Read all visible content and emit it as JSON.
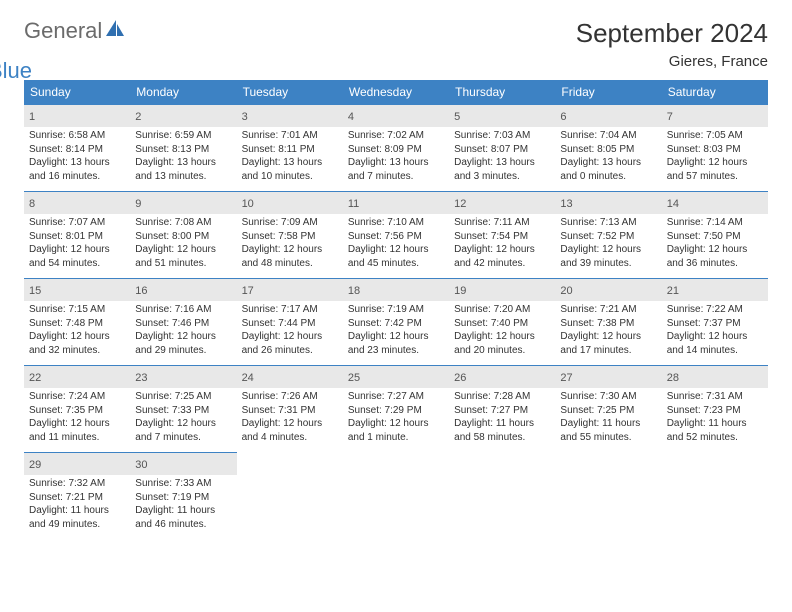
{
  "logo": {
    "text1": "General",
    "text2": "Blue",
    "icon_fill": "#2f6fb0"
  },
  "title": "September 2024",
  "location": "Gieres, France",
  "header_bg": "#3d82c4",
  "header_fg": "#ffffff",
  "daynum_bg": "#e8e8e8",
  "border_color": "#3d82c4",
  "weekdays": [
    "Sunday",
    "Monday",
    "Tuesday",
    "Wednesday",
    "Thursday",
    "Friday",
    "Saturday"
  ],
  "days": [
    {
      "n": "1",
      "sunrise": "6:58 AM",
      "sunset": "8:14 PM",
      "daylight": "13 hours and 16 minutes."
    },
    {
      "n": "2",
      "sunrise": "6:59 AM",
      "sunset": "8:13 PM",
      "daylight": "13 hours and 13 minutes."
    },
    {
      "n": "3",
      "sunrise": "7:01 AM",
      "sunset": "8:11 PM",
      "daylight": "13 hours and 10 minutes."
    },
    {
      "n": "4",
      "sunrise": "7:02 AM",
      "sunset": "8:09 PM",
      "daylight": "13 hours and 7 minutes."
    },
    {
      "n": "5",
      "sunrise": "7:03 AM",
      "sunset": "8:07 PM",
      "daylight": "13 hours and 3 minutes."
    },
    {
      "n": "6",
      "sunrise": "7:04 AM",
      "sunset": "8:05 PM",
      "daylight": "13 hours and 0 minutes."
    },
    {
      "n": "7",
      "sunrise": "7:05 AM",
      "sunset": "8:03 PM",
      "daylight": "12 hours and 57 minutes."
    },
    {
      "n": "8",
      "sunrise": "7:07 AM",
      "sunset": "8:01 PM",
      "daylight": "12 hours and 54 minutes."
    },
    {
      "n": "9",
      "sunrise": "7:08 AM",
      "sunset": "8:00 PM",
      "daylight": "12 hours and 51 minutes."
    },
    {
      "n": "10",
      "sunrise": "7:09 AM",
      "sunset": "7:58 PM",
      "daylight": "12 hours and 48 minutes."
    },
    {
      "n": "11",
      "sunrise": "7:10 AM",
      "sunset": "7:56 PM",
      "daylight": "12 hours and 45 minutes."
    },
    {
      "n": "12",
      "sunrise": "7:11 AM",
      "sunset": "7:54 PM",
      "daylight": "12 hours and 42 minutes."
    },
    {
      "n": "13",
      "sunrise": "7:13 AM",
      "sunset": "7:52 PM",
      "daylight": "12 hours and 39 minutes."
    },
    {
      "n": "14",
      "sunrise": "7:14 AM",
      "sunset": "7:50 PM",
      "daylight": "12 hours and 36 minutes."
    },
    {
      "n": "15",
      "sunrise": "7:15 AM",
      "sunset": "7:48 PM",
      "daylight": "12 hours and 32 minutes."
    },
    {
      "n": "16",
      "sunrise": "7:16 AM",
      "sunset": "7:46 PM",
      "daylight": "12 hours and 29 minutes."
    },
    {
      "n": "17",
      "sunrise": "7:17 AM",
      "sunset": "7:44 PM",
      "daylight": "12 hours and 26 minutes."
    },
    {
      "n": "18",
      "sunrise": "7:19 AM",
      "sunset": "7:42 PM",
      "daylight": "12 hours and 23 minutes."
    },
    {
      "n": "19",
      "sunrise": "7:20 AM",
      "sunset": "7:40 PM",
      "daylight": "12 hours and 20 minutes."
    },
    {
      "n": "20",
      "sunrise": "7:21 AM",
      "sunset": "7:38 PM",
      "daylight": "12 hours and 17 minutes."
    },
    {
      "n": "21",
      "sunrise": "7:22 AM",
      "sunset": "7:37 PM",
      "daylight": "12 hours and 14 minutes."
    },
    {
      "n": "22",
      "sunrise": "7:24 AM",
      "sunset": "7:35 PM",
      "daylight": "12 hours and 11 minutes."
    },
    {
      "n": "23",
      "sunrise": "7:25 AM",
      "sunset": "7:33 PM",
      "daylight": "12 hours and 7 minutes."
    },
    {
      "n": "24",
      "sunrise": "7:26 AM",
      "sunset": "7:31 PM",
      "daylight": "12 hours and 4 minutes."
    },
    {
      "n": "25",
      "sunrise": "7:27 AM",
      "sunset": "7:29 PM",
      "daylight": "12 hours and 1 minute."
    },
    {
      "n": "26",
      "sunrise": "7:28 AM",
      "sunset": "7:27 PM",
      "daylight": "11 hours and 58 minutes."
    },
    {
      "n": "27",
      "sunrise": "7:30 AM",
      "sunset": "7:25 PM",
      "daylight": "11 hours and 55 minutes."
    },
    {
      "n": "28",
      "sunrise": "7:31 AM",
      "sunset": "7:23 PM",
      "daylight": "11 hours and 52 minutes."
    },
    {
      "n": "29",
      "sunrise": "7:32 AM",
      "sunset": "7:21 PM",
      "daylight": "11 hours and 49 minutes."
    },
    {
      "n": "30",
      "sunrise": "7:33 AM",
      "sunset": "7:19 PM",
      "daylight": "11 hours and 46 minutes."
    }
  ],
  "labels": {
    "sunrise": "Sunrise:",
    "sunset": "Sunset:",
    "daylight": "Daylight:"
  }
}
